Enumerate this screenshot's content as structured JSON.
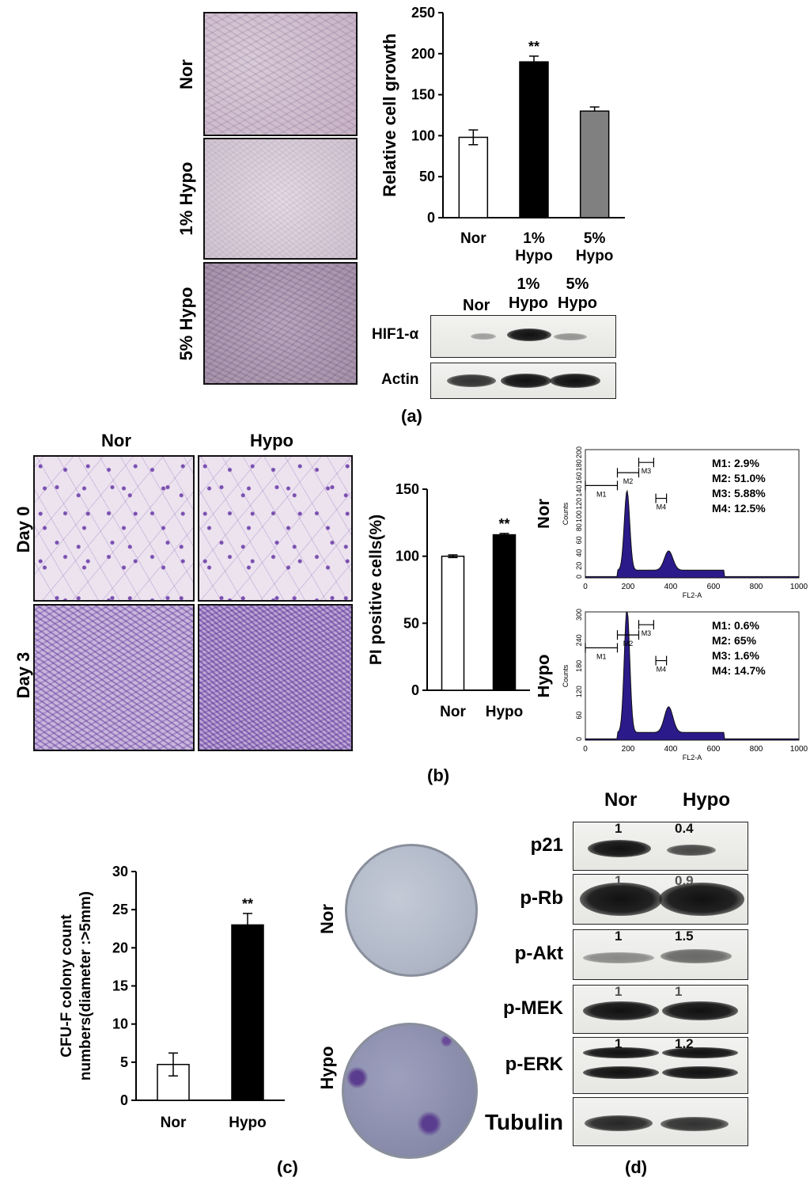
{
  "panel_a": {
    "caption": "(a)",
    "image_labels": [
      "Nor",
      "1% Hypo",
      "5% Hypo"
    ],
    "western": {
      "lanes": [
        "Nor",
        "1%\nHypo",
        "5%\nHypo"
      ],
      "rows": [
        "HIF1-α",
        "Actin"
      ]
    }
  },
  "panel_b": {
    "caption": "(b)",
    "col_labels": [
      "Nor",
      "Hypo"
    ],
    "row_labels": [
      "Day 0",
      "Day 3"
    ],
    "flow": [
      {
        "label": "Nor",
        "stats": [
          "M1: 2.9%",
          "M2: 51.0%",
          "M3: 5.88%",
          "M4: 12.5%"
        ],
        "yticks": [
          "0",
          "20",
          "40",
          "60",
          "80",
          "100",
          "120",
          "140",
          "160",
          "180",
          "200"
        ],
        "gates": [
          "M1",
          "M2",
          "M3",
          "M4"
        ],
        "ylabel": "Counts",
        "xlabel": "FL2-A",
        "xticks": [
          "0",
          "200",
          "400",
          "600",
          "800",
          "1000"
        ]
      },
      {
        "label": "Hypo",
        "stats": [
          "M1: 0.6%",
          "M2: 65%",
          "M3: 1.6%",
          "M4: 14.7%"
        ],
        "yticks": [
          "0",
          "60",
          "120",
          "180",
          "240",
          "300"
        ],
        "gates": [
          "M1",
          "M2",
          "M3",
          "M4"
        ],
        "ylabel": "Counts",
        "xlabel": "FL2-A",
        "xticks": [
          "0",
          "200",
          "400",
          "600",
          "800",
          "1000"
        ]
      }
    ]
  },
  "panel_c": {
    "caption": "(c)",
    "plate_labels": [
      "Nor",
      "Hypo"
    ]
  },
  "panel_d": {
    "caption": "(d)",
    "lanes": [
      "Nor",
      "Hypo"
    ],
    "rows": [
      {
        "name": "p21",
        "values": [
          "1",
          "0.4"
        ]
      },
      {
        "name": "p-Rb",
        "values": [
          "1",
          "0.9"
        ]
      },
      {
        "name": "p-Akt",
        "values": [
          "1",
          "1.5"
        ]
      },
      {
        "name": "p-MEK",
        "values": [
          "1",
          "1"
        ]
      },
      {
        "name": "p-ERK",
        "values": [
          "1",
          "1.2"
        ]
      },
      {
        "name": "Tubulin",
        "values": []
      }
    ]
  },
  "chart_data": [
    {
      "type": "bar",
      "categories": [
        "Nor",
        "1%\nHypo",
        "5%\nHypo"
      ],
      "values": [
        98,
        190,
        130
      ],
      "errors": [
        9,
        7,
        5
      ],
      "colors": [
        "#ffffff",
        "#000000",
        "#808080"
      ],
      "annotations": [
        "",
        "**",
        ""
      ],
      "ylabel": "Relative cell growth",
      "ylim": [
        0,
        250
      ],
      "yticks": [
        0,
        50,
        100,
        150,
        200,
        250
      ]
    },
    {
      "type": "bar",
      "categories": [
        "Nor",
        "Hypo"
      ],
      "values": [
        100,
        116
      ],
      "errors": [
        1,
        1
      ],
      "colors": [
        "#ffffff",
        "#000000"
      ],
      "annotations": [
        "",
        "**"
      ],
      "ylabel": "PI positive cells(%)",
      "ylim": [
        0,
        150
      ],
      "yticks": [
        0,
        50,
        100,
        150
      ]
    },
    {
      "type": "bar",
      "categories": [
        "Nor",
        "Hypo"
      ],
      "values": [
        4.7,
        23
      ],
      "errors": [
        1.5,
        1.5
      ],
      "colors": [
        "#ffffff",
        "#000000"
      ],
      "annotations": [
        "",
        "**"
      ],
      "ylabel": "CFU-F colony count\nnumbers(diameter :>5mm)",
      "ylim": [
        0,
        30
      ],
      "yticks": [
        0,
        5,
        10,
        15,
        20,
        25,
        30
      ]
    }
  ]
}
